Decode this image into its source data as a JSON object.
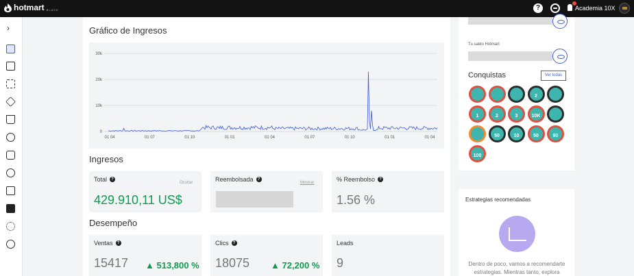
{
  "topbar": {
    "brand": "hotmart",
    "brand_sub": "BLACK",
    "help_label": "?",
    "account": "Academia 10X"
  },
  "sidebar": {
    "toggle": "›",
    "items": [
      "dashboard-icon",
      "grid-icon",
      "market-icon",
      "products-icon",
      "cart-icon",
      "transfer-icon",
      "chat-icon",
      "dollar-icon",
      "reports-icon",
      "puzzle-icon",
      "settings-icon",
      "community-icon"
    ]
  },
  "chart_section": {
    "title": "Gráfico de Ingresos"
  },
  "chart_data": {
    "type": "line",
    "title": "Gráfico de Ingresos",
    "xlabel": "",
    "ylabel": "",
    "ylim": [
      0,
      30000
    ],
    "y_ticks": [
      "0",
      "10k",
      "20k",
      "30k"
    ],
    "x_ticks": [
      "01 04",
      "01 07",
      "01 10",
      "01 01",
      "01 04",
      "01 07",
      "01 10",
      "01 01",
      "01 04"
    ],
    "grid": true,
    "color": "#3b5bdb"
  },
  "ingresos": {
    "title": "Ingresos",
    "total_label": "Total",
    "total_value": "429.910,11 US$",
    "hide_label": "Ocultar",
    "reembolsada_label": "Reembolsada",
    "show_label": "Mostrar",
    "reembolso_label": "% Reembolso",
    "reembolso_value": "1.56 %"
  },
  "desempeno": {
    "title": "Desempeño",
    "ventas_label": "Ventas",
    "ventas_value": "15417",
    "ventas_delta": "513,800 %",
    "clics_label": "Clics",
    "clics_value": "18075",
    "clics_delta": "72,200 %",
    "leads_label": "Leads",
    "leads_value": "9"
  },
  "right_panel": {
    "saldo_label": "Tu saldo Hotmart",
    "conquistas_title": "Conquistas",
    "ver_todas": "Ver todas",
    "badges": [
      "",
      "",
      "",
      "2",
      "",
      "1",
      "2",
      "3",
      "10K",
      "",
      "",
      "50",
      "10",
      "50",
      "90",
      "100"
    ],
    "badge_colors": [
      "#e04f3f",
      "#e04f3f",
      "#2b2b2b",
      "#2b2b2b",
      "#2b2b2b",
      "#e04f3f",
      "#e04f3f",
      "#e04f3f",
      "#e04f3f",
      "#2b2b2b",
      "#f08a2e",
      "#2b2b2b",
      "#2b2b2b",
      "#e04f3f",
      "#e04f3f",
      "#e04f3f"
    ]
  },
  "strategies": {
    "title": "Estrategias recomendadas",
    "text": "Dentro de poco, vamos a recomendarte estrategias. Mientras tanto, explora"
  }
}
